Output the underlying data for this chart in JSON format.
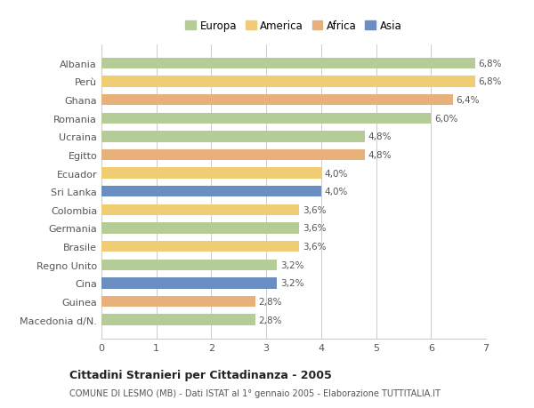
{
  "categories": [
    "Macedonia d/N.",
    "Guinea",
    "Cina",
    "Regno Unito",
    "Brasile",
    "Germania",
    "Colombia",
    "Sri Lanka",
    "Ecuador",
    "Egitto",
    "Ucraina",
    "Romania",
    "Ghana",
    "Perù",
    "Albania"
  ],
  "values": [
    2.8,
    2.8,
    3.2,
    3.2,
    3.6,
    3.6,
    3.6,
    4.0,
    4.0,
    4.8,
    4.8,
    6.0,
    6.4,
    6.8,
    6.8
  ],
  "colors": [
    "#b5cc96",
    "#e8b07a",
    "#6b8ec2",
    "#b5cc96",
    "#f0cc72",
    "#b5cc96",
    "#f0cc72",
    "#6b8ec2",
    "#f0cc72",
    "#e8b07a",
    "#b5cc96",
    "#b5cc96",
    "#e8b07a",
    "#f0cc72",
    "#b5cc96"
  ],
  "labels": [
    "2,8%",
    "2,8%",
    "3,2%",
    "3,2%",
    "3,6%",
    "3,6%",
    "3,6%",
    "4,0%",
    "4,0%",
    "4,8%",
    "4,8%",
    "6,0%",
    "6,4%",
    "6,8%",
    "6,8%"
  ],
  "legend_labels": [
    "Europa",
    "America",
    "Africa",
    "Asia"
  ],
  "legend_colors": [
    "#b5cc96",
    "#f0cc72",
    "#e8b07a",
    "#6b8ec2"
  ],
  "xlim": [
    0,
    7
  ],
  "xticks": [
    0,
    1,
    2,
    3,
    4,
    5,
    6,
    7
  ],
  "title": "Cittadini Stranieri per Cittadinanza - 2005",
  "subtitle": "COMUNE DI LESMO (MB) - Dati ISTAT al 1° gennaio 2005 - Elaborazione TUTTITALIA.IT",
  "background_color": "#ffffff",
  "grid_color": "#cccccc",
  "text_color": "#555555"
}
